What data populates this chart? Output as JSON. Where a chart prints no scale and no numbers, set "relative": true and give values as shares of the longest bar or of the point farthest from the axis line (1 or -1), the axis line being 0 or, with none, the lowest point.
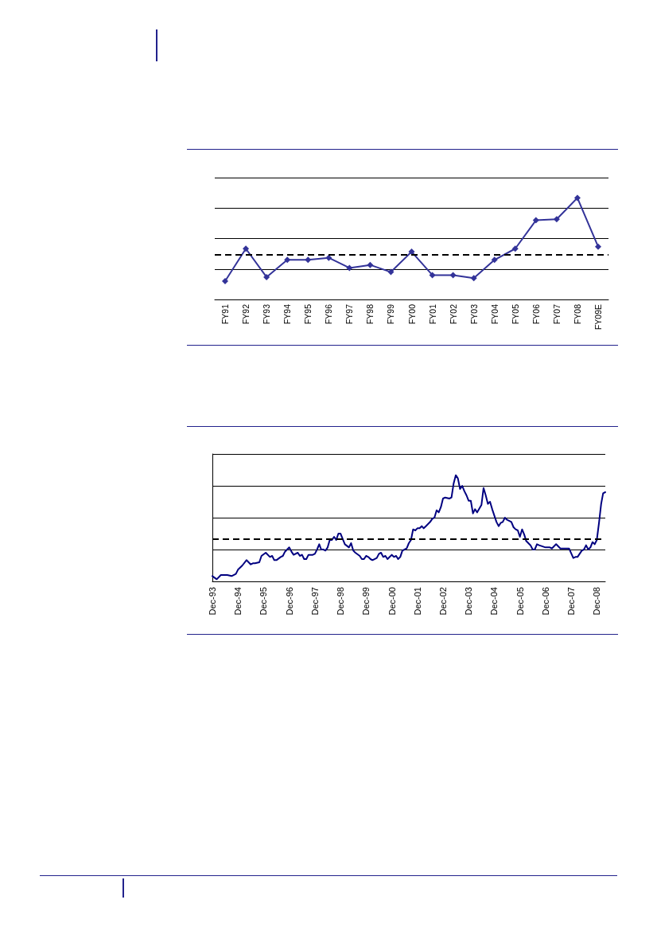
{
  "chart_data": [
    {
      "type": "line",
      "categories": [
        "FY91",
        "FY92",
        "FY93",
        "FY94",
        "FY95",
        "FY96",
        "FY97",
        "FY98",
        "FY99",
        "FY00",
        "FY01",
        "FY02",
        "FY03",
        "FY04",
        "FY05",
        "FY06",
        "FY07",
        "FY08",
        "FY09E"
      ],
      "values": [
        0.18,
        0.5,
        0.22,
        0.39,
        0.39,
        0.41,
        0.31,
        0.34,
        0.27,
        0.47,
        0.24,
        0.24,
        0.21,
        0.39,
        0.5,
        0.78,
        0.79,
        1,
        0.52
      ],
      "color": "#333399",
      "relative": true,
      "marker": "diamond",
      "grid": "y",
      "ref_lines": [
        {
          "axis": "y",
          "value": 0.44,
          "color": "#000000",
          "line_style": "dashed"
        }
      ]
    },
    {
      "type": "line",
      "x": [
        "1993-12",
        "1994-02",
        "1994-04",
        "1994-06",
        "1994-07",
        "1994-09",
        "1994-11",
        "1994-12",
        "1995-02",
        "1995-04",
        "1995-06",
        "1995-07",
        "1995-08",
        "1995-10",
        "1995-11",
        "1996-01",
        "1996-03",
        "1996-04",
        "1996-05",
        "1996-06",
        "1996-08",
        "1996-09",
        "1996-10",
        "1996-12",
        "1997-01",
        "1997-02",
        "1997-04",
        "1997-05",
        "1997-06",
        "1997-07",
        "1997-08",
        "1997-09",
        "1997-11",
        "1997-12",
        "1998-01",
        "1998-02",
        "1998-03",
        "1998-04",
        "1998-05",
        "1998-06",
        "1998-07",
        "1998-08",
        "1998-09",
        "1998-10",
        "1998-11",
        "1998-12",
        "1999-01",
        "1999-02",
        "1999-04",
        "1999-05",
        "1999-06",
        "1999-07",
        "1999-09",
        "1999-10",
        "1999-11",
        "1999-12",
        "2000-01",
        "2000-02",
        "2000-03",
        "2000-05",
        "2000-06",
        "2000-07",
        "2000-08",
        "2000-09",
        "2000-10",
        "2000-11",
        "2000-12",
        "2001-01",
        "2001-02",
        "2001-03",
        "2001-04",
        "2001-05",
        "2001-06",
        "2001-07",
        "2001-08",
        "2001-09",
        "2001-10",
        "2001-11",
        "2001-12",
        "2002-01",
        "2002-02",
        "2002-03",
        "2002-04",
        "2002-06",
        "2002-07",
        "2002-08",
        "2002-09",
        "2002-10",
        "2002-11",
        "2002-12",
        "2003-01",
        "2003-03",
        "2003-04",
        "2003-05",
        "2003-06",
        "2003-07",
        "2003-08",
        "2003-09",
        "2003-10",
        "2003-11",
        "2003-12",
        "2004-01",
        "2004-02",
        "2004-03",
        "2004-04",
        "2004-06",
        "2004-07",
        "2004-08",
        "2004-09",
        "2004-10",
        "2004-11",
        "2005-01",
        "2005-02",
        "2005-03",
        "2005-04",
        "2005-05",
        "2005-06",
        "2005-08",
        "2005-09",
        "2005-10",
        "2005-11",
        "2005-12",
        "2006-01",
        "2006-02",
        "2006-03",
        "2006-05",
        "2006-06",
        "2006-07",
        "2006-08",
        "2006-09",
        "2006-12",
        "2007-02",
        "2007-03",
        "2007-05",
        "2007-07",
        "2007-09",
        "2007-11",
        "2008-01",
        "2008-02",
        "2008-03",
        "2008-05",
        "2008-06",
        "2008-07",
        "2008-08",
        "2008-09",
        "2008-10",
        "2008-11",
        "2008-12",
        "2009-01",
        "2009-02",
        "2009-03",
        "2009-04"
      ],
      "values": [
        0.05,
        0.02,
        0.06,
        0.06,
        0.06,
        0.05,
        0.07,
        0.11,
        0.15,
        0.2,
        0.16,
        0.17,
        0.17,
        0.18,
        0.24,
        0.27,
        0.23,
        0.24,
        0.2,
        0.2,
        0.23,
        0.24,
        0.28,
        0.32,
        0.28,
        0.25,
        0.27,
        0.24,
        0.25,
        0.21,
        0.21,
        0.25,
        0.25,
        0.26,
        0.3,
        0.35,
        0.3,
        0.3,
        0.29,
        0.32,
        0.39,
        0.39,
        0.42,
        0.39,
        0.45,
        0.45,
        0.4,
        0.35,
        0.32,
        0.36,
        0.29,
        0.27,
        0.24,
        0.21,
        0.21,
        0.24,
        0.23,
        0.21,
        0.2,
        0.22,
        0.26,
        0.27,
        0.23,
        0.24,
        0.21,
        0.23,
        0.25,
        0.23,
        0.24,
        0.21,
        0.23,
        0.29,
        0.3,
        0.31,
        0.36,
        0.39,
        0.49,
        0.48,
        0.5,
        0.5,
        0.52,
        0.5,
        0.52,
        0.56,
        0.59,
        0.6,
        0.67,
        0.65,
        0.7,
        0.78,
        0.79,
        0.78,
        0.79,
        0.92,
        1,
        0.97,
        0.87,
        0.9,
        0.85,
        0.81,
        0.76,
        0.76,
        0.64,
        0.68,
        0.65,
        0.72,
        0.88,
        0.81,
        0.73,
        0.75,
        0.68,
        0.56,
        0.52,
        0.55,
        0.56,
        0.6,
        0.58,
        0.56,
        0.51,
        0.49,
        0.48,
        0.42,
        0.49,
        0.44,
        0.38,
        0.34,
        0.3,
        0.3,
        0.35,
        0.34,
        0.32,
        0.32,
        0.31,
        0.35,
        0.31,
        0.31,
        0.31,
        0.22,
        0.23,
        0.23,
        0.29,
        0.3,
        0.34,
        0.3,
        0.32,
        0.37,
        0.35,
        0.39,
        0.55,
        0.73,
        0.83,
        0.84
      ],
      "color": "#000080",
      "relative": true,
      "grid": "y",
      "xlim": [
        "1993-12",
        "2009-04"
      ],
      "xticks": [
        {
          "value": "1993-12",
          "label": "Dec-93"
        },
        {
          "value": "1994-12",
          "label": "Dec-94"
        },
        {
          "value": "1995-12",
          "label": "Dec-95"
        },
        {
          "value": "1996-12",
          "label": "Dec-96"
        },
        {
          "value": "1997-12",
          "label": "Dec-97"
        },
        {
          "value": "1998-12",
          "label": "Dec-98"
        },
        {
          "value": "1999-12",
          "label": "Dec-99"
        },
        {
          "value": "2000-12",
          "label": "Dec-00"
        },
        {
          "value": "2001-12",
          "label": "Dec-01"
        },
        {
          "value": "2002-12",
          "label": "Dec-02"
        },
        {
          "value": "2003-12",
          "label": "Dec-03"
        },
        {
          "value": "2004-12",
          "label": "Dec-04"
        },
        {
          "value": "2005-12",
          "label": "Dec-05"
        },
        {
          "value": "2006-12",
          "label": "Dec-06"
        },
        {
          "value": "2007-12",
          "label": "Dec-07"
        },
        {
          "value": "2008-12",
          "label": "Dec-08"
        }
      ],
      "ref_lines": [
        {
          "axis": "y",
          "value": 0.4,
          "color": "#000000",
          "line_style": "dashed"
        }
      ]
    }
  ]
}
